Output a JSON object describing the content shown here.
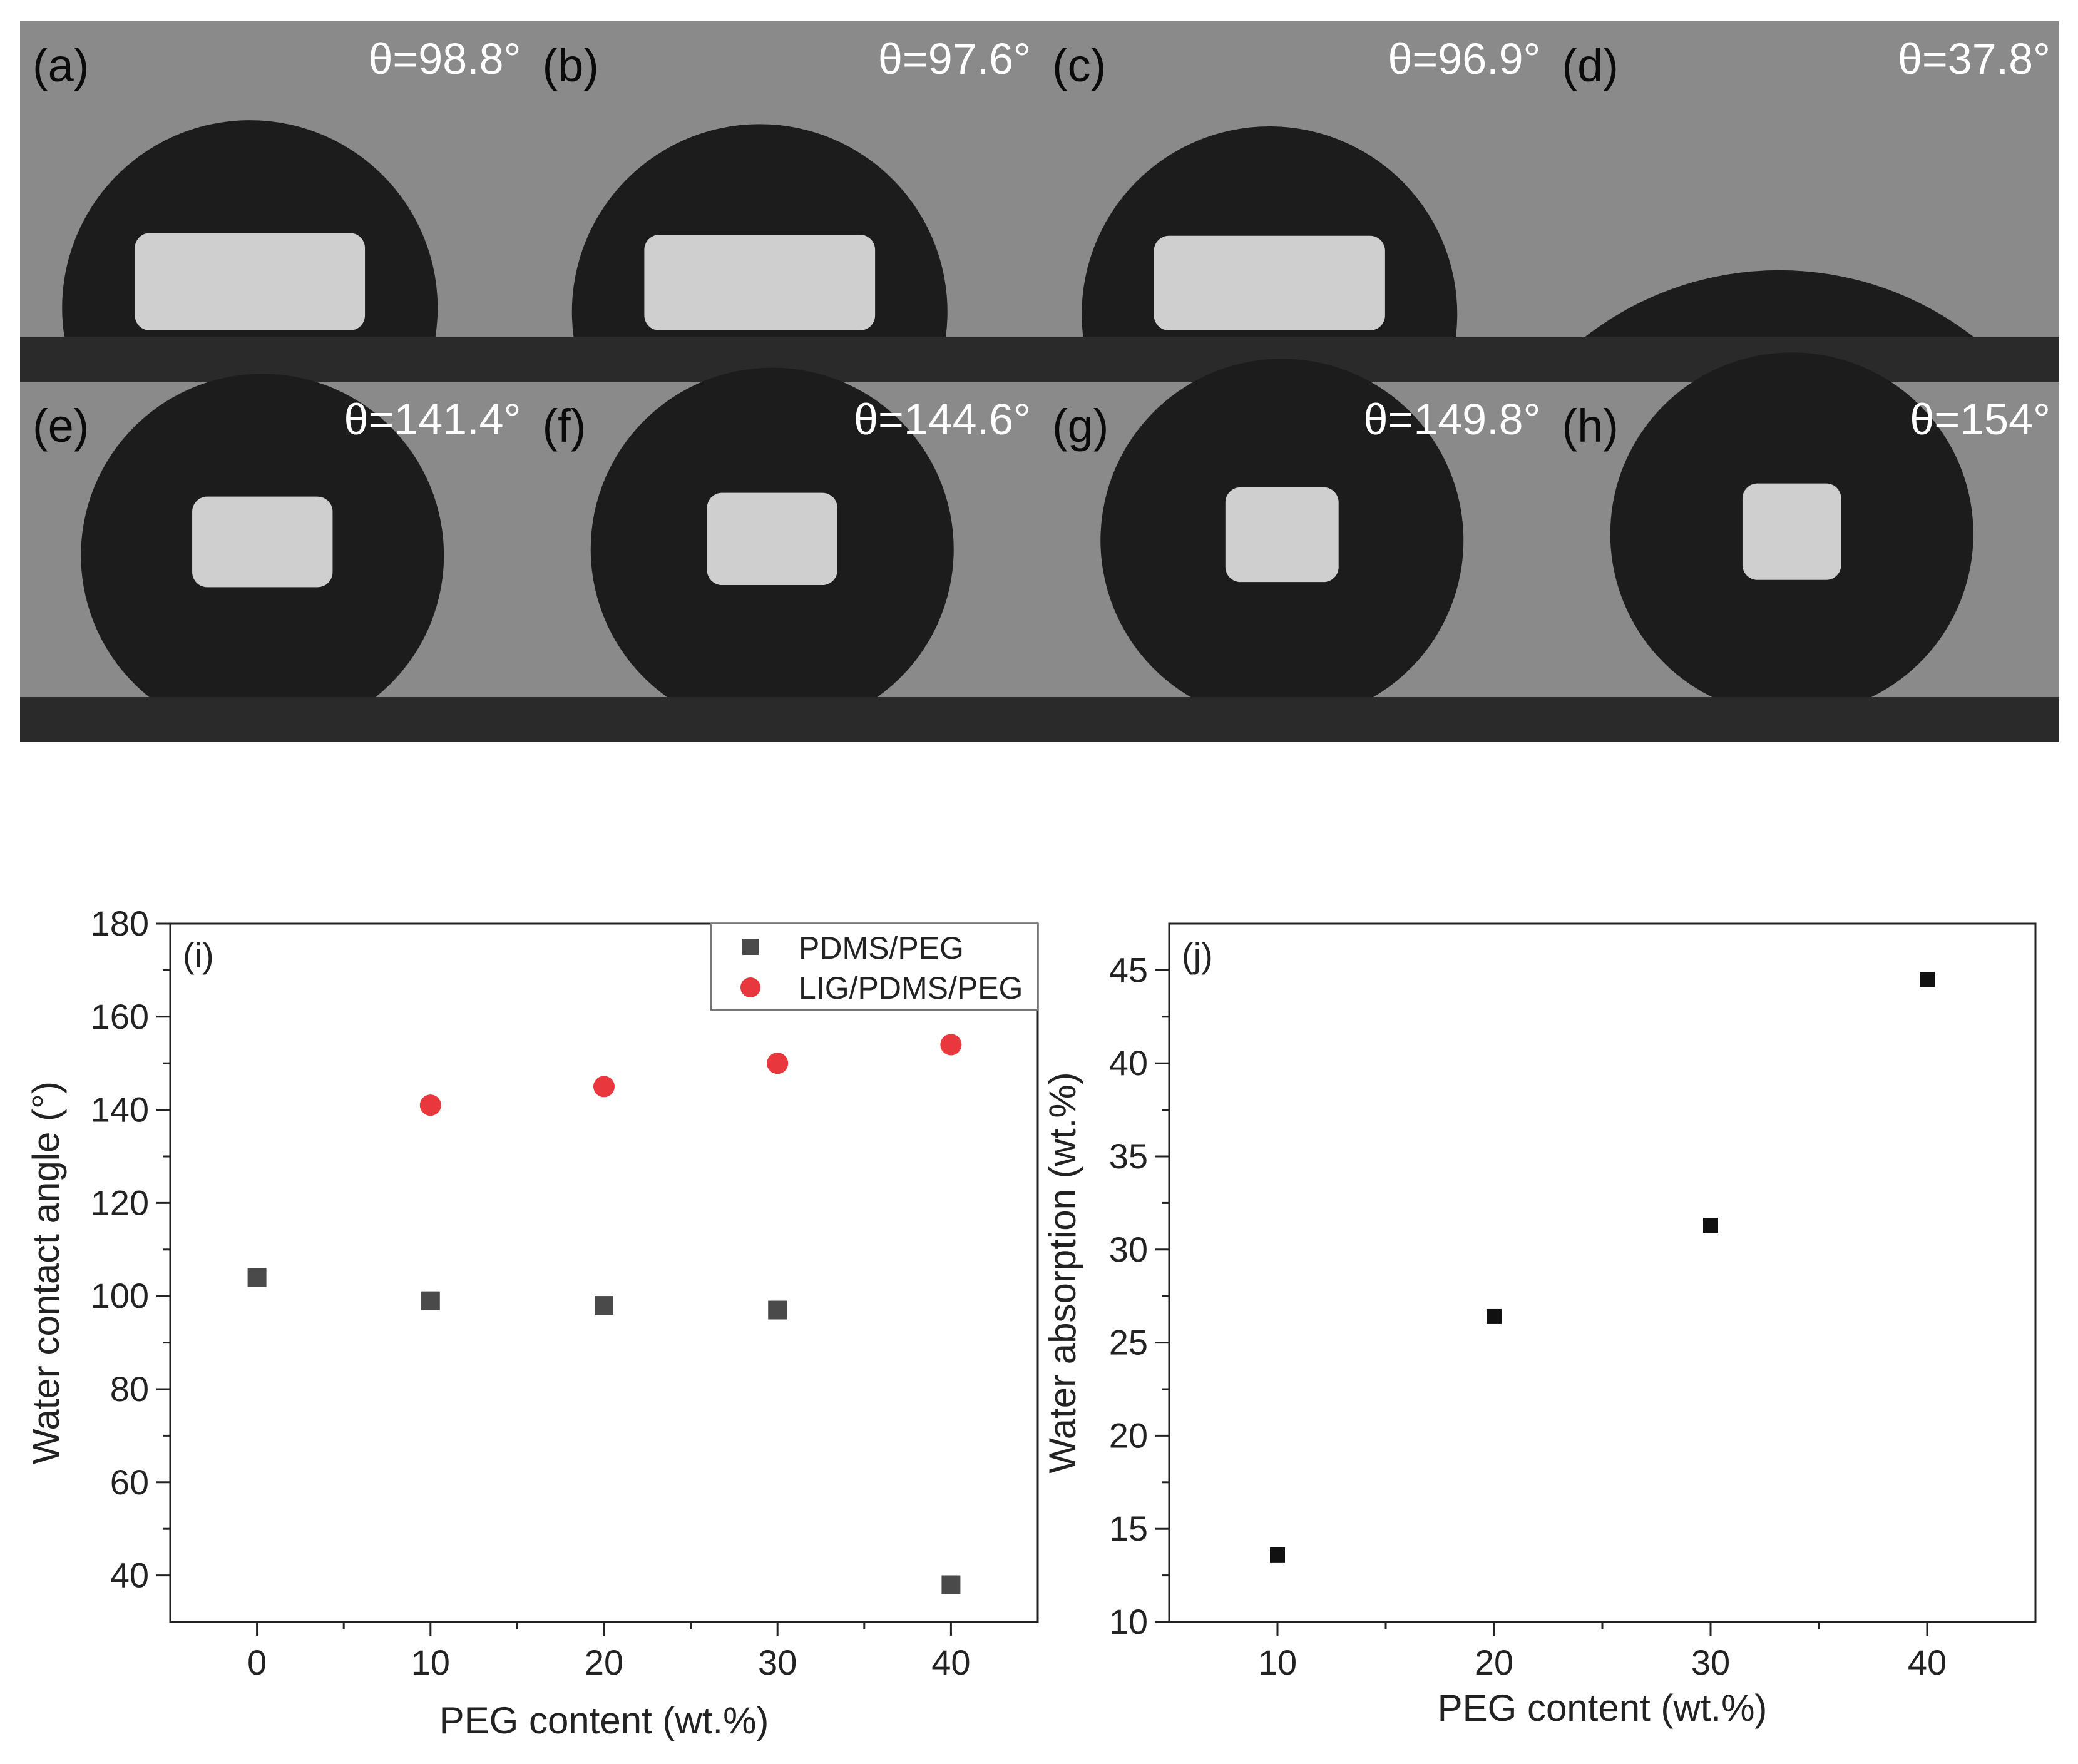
{
  "photo_panels": [
    {
      "label": "(a)",
      "angle_text": "θ=98.8°",
      "angle": 98.8
    },
    {
      "label": "(b)",
      "angle_text": "θ=97.6°",
      "angle": 97.6
    },
    {
      "label": "(c)",
      "angle_text": "θ=96.9°",
      "angle": 96.9
    },
    {
      "label": "(d)",
      "angle_text": "θ=37.8°",
      "angle": 37.8
    },
    {
      "label": "(e)",
      "angle_text": "θ=141.4°",
      "angle": 141.4
    },
    {
      "label": "(f)",
      "angle_text": "θ=144.6°",
      "angle": 144.6
    },
    {
      "label": "(g)",
      "angle_text": "θ=149.8°",
      "angle": 149.8
    },
    {
      "label": "(h)",
      "angle_text": "θ=154°",
      "angle": 154
    }
  ],
  "colors": {
    "photo_background": "#8a8a8a",
    "substrate": "#2a2a2a",
    "droplet": "#1c1c1c",
    "droplet_highlight": "#cfcfcf",
    "pdms_marker": "#4a4a4a",
    "lig_marker": "#e8383d",
    "j_marker": "#111111"
  },
  "chart_data": [
    {
      "type": "scatter",
      "panel_label": "(i)",
      "xlabel": "PEG content (wt.%)",
      "ylabel": "Water contact angle (°)",
      "xlim": [
        -5,
        45
      ],
      "ylim": [
        30,
        180
      ],
      "xticks": [
        0,
        10,
        20,
        30,
        40
      ],
      "yticks": [
        40,
        60,
        80,
        100,
        120,
        140,
        160,
        180
      ],
      "legend_position": "top-right",
      "series": [
        {
          "name": "PDMS/PEG",
          "marker": "square",
          "x": [
            0,
            10,
            20,
            30,
            40
          ],
          "y": [
            104,
            99,
            98,
            97,
            38
          ]
        },
        {
          "name": "LIG/PDMS/PEG",
          "marker": "circle",
          "x": [
            10,
            20,
            30,
            40
          ],
          "y": [
            141,
            145,
            150,
            154
          ]
        }
      ]
    },
    {
      "type": "scatter",
      "panel_label": "(j)",
      "xlabel": "PEG content (wt.%)",
      "ylabel": "Water absorption (wt.%)",
      "xlim": [
        5,
        45
      ],
      "ylim": [
        10,
        47.5
      ],
      "xticks": [
        10,
        20,
        30,
        40
      ],
      "yticks": [
        10,
        15,
        20,
        25,
        30,
        35,
        40,
        45
      ],
      "series": [
        {
          "marker": "square",
          "x": [
            10,
            20,
            30,
            40
          ],
          "y": [
            13.6,
            26.4,
            31.3,
            44.5
          ]
        }
      ]
    }
  ]
}
